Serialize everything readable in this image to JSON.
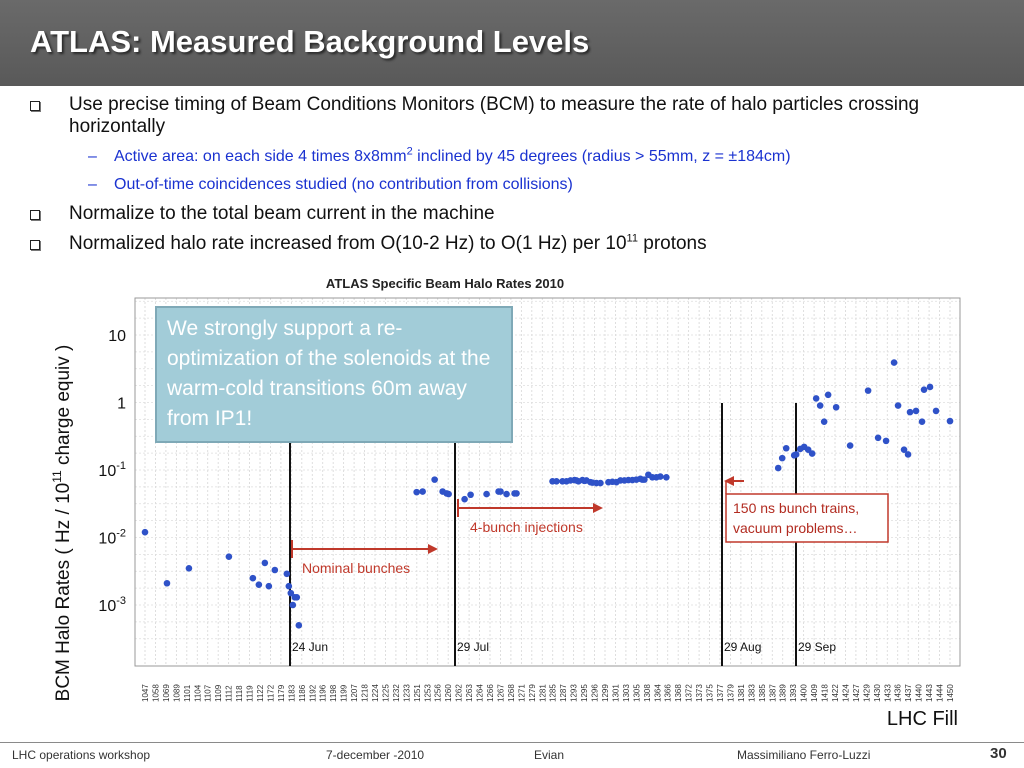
{
  "slide": {
    "title": "ATLAS: Measured Background Levels",
    "bullets": [
      {
        "text": "Use precise timing of Beam Conditions Monitors (BCM) to measure the rate of halo particles crossing horizontally"
      },
      {
        "text_a": "Active area: on each side 4 times 8x8mm",
        "sup": "2",
        "text_b": " inclined by 45 degrees (radius > 55mm, z = ±184cm)"
      },
      {
        "text": "Out-of-time coincidences studied (no contribution from collisions)"
      },
      {
        "text": "Normalize to the total beam current in the machine"
      },
      {
        "text_a": "Normalized halo rate increased from O(10-2 Hz) to O(1 Hz) per 10",
        "sup": "11",
        "text_b": " protons"
      }
    ],
    "callout": "We strongly support a re-optimization of the solenoids at the warm-cold transitions 60m away from IP1!",
    "footer": {
      "left": "LHC operations workshop",
      "date": "7-december -2010",
      "place": "Evian",
      "author": "Massimiliano Ferro-Luzzi",
      "page": "30"
    }
  },
  "chart_data": {
    "type": "scatter",
    "title": "ATLAS Specific Beam Halo Rates 2010",
    "ylabel": "BCM Halo Rates ( Hz / 10^11 charge equiv )",
    "xlabel": "LHC Fill",
    "yscale": "log",
    "ylim": [
      0.0003,
      40
    ],
    "yticks": [
      10,
      1,
      0.1,
      0.01,
      0.001
    ],
    "ytick_labels": [
      "10",
      "1",
      "10-1",
      "10-2",
      "10-3"
    ],
    "grid": true,
    "marker_color": "#2f52c8",
    "x_categories": [
      "1047",
      "1058",
      "1069",
      "1089",
      "1101",
      "1104",
      "1107",
      "1109",
      "1112",
      "1118",
      "1119",
      "1122",
      "1172",
      "1179",
      "1183",
      "1186",
      "1192",
      "1196",
      "1198",
      "1199",
      "1207",
      "1218",
      "1224",
      "1225",
      "1232",
      "1233",
      "1251",
      "1253",
      "1256",
      "1260",
      "1262",
      "1263",
      "1264",
      "1266",
      "1267",
      "1268",
      "1271",
      "1279",
      "1281",
      "1285",
      "1287",
      "1293",
      "1295",
      "1296",
      "1299",
      "1301",
      "1303",
      "1305",
      "1308",
      "1364",
      "1366",
      "1368",
      "1372",
      "1373",
      "1375",
      "1377",
      "1379",
      "1381",
      "1383",
      "1385",
      "1387",
      "1389",
      "1393",
      "1400",
      "1409",
      "1418",
      "1422",
      "1424",
      "1427",
      "1429",
      "1430",
      "1433",
      "1436",
      "1437",
      "1440",
      "1443",
      "1444",
      "1450"
    ],
    "points": [
      {
        "fill": "1047",
        "y": 0.012
      },
      {
        "fill": "1058",
        "y": 0.0021
      },
      {
        "fill": "1069",
        "y": 0.0035
      },
      {
        "fill": "1089",
        "y": 0.0052
      },
      {
        "fill": "1101",
        "y": 0.0025
      },
      {
        "fill": "1104",
        "y": 0.002
      },
      {
        "fill": "1107",
        "y": 0.0042
      },
      {
        "fill": "1109",
        "y": 0.0019
      },
      {
        "fill": "1112",
        "y": 0.0033
      },
      {
        "fill": "1118",
        "y": 0.0029
      },
      {
        "fill": "1119",
        "y": 0.0019
      },
      {
        "fill": "1120",
        "y": 0.0015
      },
      {
        "fill": "1121",
        "y": 0.001
      },
      {
        "fill": "1122",
        "y": 0.0013
      },
      {
        "fill": "1123",
        "y": 0.0013
      },
      {
        "fill": "1124",
        "y": 0.0005
      },
      {
        "fill": "1183",
        "y": 0.047
      },
      {
        "fill": "1186",
        "y": 0.048
      },
      {
        "fill": "1192",
        "y": 0.072
      },
      {
        "fill": "1196",
        "y": 0.048
      },
      {
        "fill": "1198",
        "y": 0.045
      },
      {
        "fill": "1199",
        "y": 0.044
      },
      {
        "fill": "1207",
        "y": 0.037
      },
      {
        "fill": "1210",
        "y": 0.043
      },
      {
        "fill": "1218",
        "y": 0.044
      },
      {
        "fill": "1224",
        "y": 0.048
      },
      {
        "fill": "1225",
        "y": 0.048
      },
      {
        "fill": "1228",
        "y": 0.044
      },
      {
        "fill": "1232",
        "y": 0.045
      },
      {
        "fill": "1233",
        "y": 0.045
      },
      {
        "fill": "1251",
        "y": 0.068
      },
      {
        "fill": "1253",
        "y": 0.068
      },
      {
        "fill": "1256",
        "y": 0.068
      },
      {
        "fill": "1258",
        "y": 0.068
      },
      {
        "fill": "1260",
        "y": 0.07
      },
      {
        "fill": "1262",
        "y": 0.071
      },
      {
        "fill": "1263",
        "y": 0.07
      },
      {
        "fill": "1264",
        "y": 0.068
      },
      {
        "fill": "1266",
        "y": 0.071
      },
      {
        "fill": "1267",
        "y": 0.069
      },
      {
        "fill": "1268",
        "y": 0.07
      },
      {
        "fill": "1270",
        "y": 0.066
      },
      {
        "fill": "1271",
        "y": 0.065
      },
      {
        "fill": "1273",
        "y": 0.064
      },
      {
        "fill": "1275",
        "y": 0.064
      },
      {
        "fill": "1279",
        "y": 0.066
      },
      {
        "fill": "1281",
        "y": 0.067
      },
      {
        "fill": "1283",
        "y": 0.066
      },
      {
        "fill": "1285",
        "y": 0.07
      },
      {
        "fill": "1287",
        "y": 0.07
      },
      {
        "fill": "1289",
        "y": 0.071
      },
      {
        "fill": "1291",
        "y": 0.071
      },
      {
        "fill": "1293",
        "y": 0.072
      },
      {
        "fill": "1295",
        "y": 0.074
      },
      {
        "fill": "1296",
        "y": 0.072
      },
      {
        "fill": "1297",
        "y": 0.072
      },
      {
        "fill": "1299",
        "y": 0.085
      },
      {
        "fill": "1301",
        "y": 0.078
      },
      {
        "fill": "1303",
        "y": 0.078
      },
      {
        "fill": "1305",
        "y": 0.08
      },
      {
        "fill": "1308",
        "y": 0.078
      },
      {
        "fill": "1364",
        "y": 0.107
      },
      {
        "fill": "1366",
        "y": 0.15
      },
      {
        "fill": "1368",
        "y": 0.21
      },
      {
        "fill": "1372",
        "y": 0.165
      },
      {
        "fill": "1373",
        "y": 0.17
      },
      {
        "fill": "1375",
        "y": 0.205
      },
      {
        "fill": "1377",
        "y": 0.22
      },
      {
        "fill": "1379",
        "y": 0.2
      },
      {
        "fill": "1381",
        "y": 0.175
      },
      {
        "fill": "1383",
        "y": 1.15
      },
      {
        "fill": "1385",
        "y": 0.9
      },
      {
        "fill": "1387",
        "y": 0.52
      },
      {
        "fill": "1389",
        "y": 1.3
      },
      {
        "fill": "1393",
        "y": 0.85
      },
      {
        "fill": "1400",
        "y": 0.23
      },
      {
        "fill": "1409",
        "y": 1.5
      },
      {
        "fill": "1414",
        "y": 0.3
      },
      {
        "fill": "1418",
        "y": 0.27
      },
      {
        "fill": "1422",
        "y": 3.9
      },
      {
        "fill": "1424",
        "y": 0.9
      },
      {
        "fill": "1427",
        "y": 0.2
      },
      {
        "fill": "1429",
        "y": 0.17
      },
      {
        "fill": "1430",
        "y": 0.72
      },
      {
        "fill": "1433",
        "y": 0.75
      },
      {
        "fill": "1436",
        "y": 0.52
      },
      {
        "fill": "1437",
        "y": 1.55
      },
      {
        "fill": "1440",
        "y": 1.7
      },
      {
        "fill": "1443",
        "y": 0.75
      },
      {
        "fill": "1450",
        "y": 0.53
      }
    ],
    "vertical_markers": [
      {
        "label": "24 Jun",
        "fill": "1179"
      },
      {
        "label": "29 Jul",
        "fill": "1251"
      },
      {
        "label": "29 Aug",
        "fill": "1364"
      },
      {
        "label": "29 Sep",
        "fill": "1381"
      }
    ],
    "annotations": [
      {
        "text": "Nominal bunches",
        "color": "#c0392b"
      },
      {
        "text": "4-bunch injections",
        "color": "#c0392b"
      },
      {
        "text_lines": [
          "150 ns bunch trains,",
          "vacuum problems…"
        ],
        "color": "#c0392b"
      }
    ]
  }
}
